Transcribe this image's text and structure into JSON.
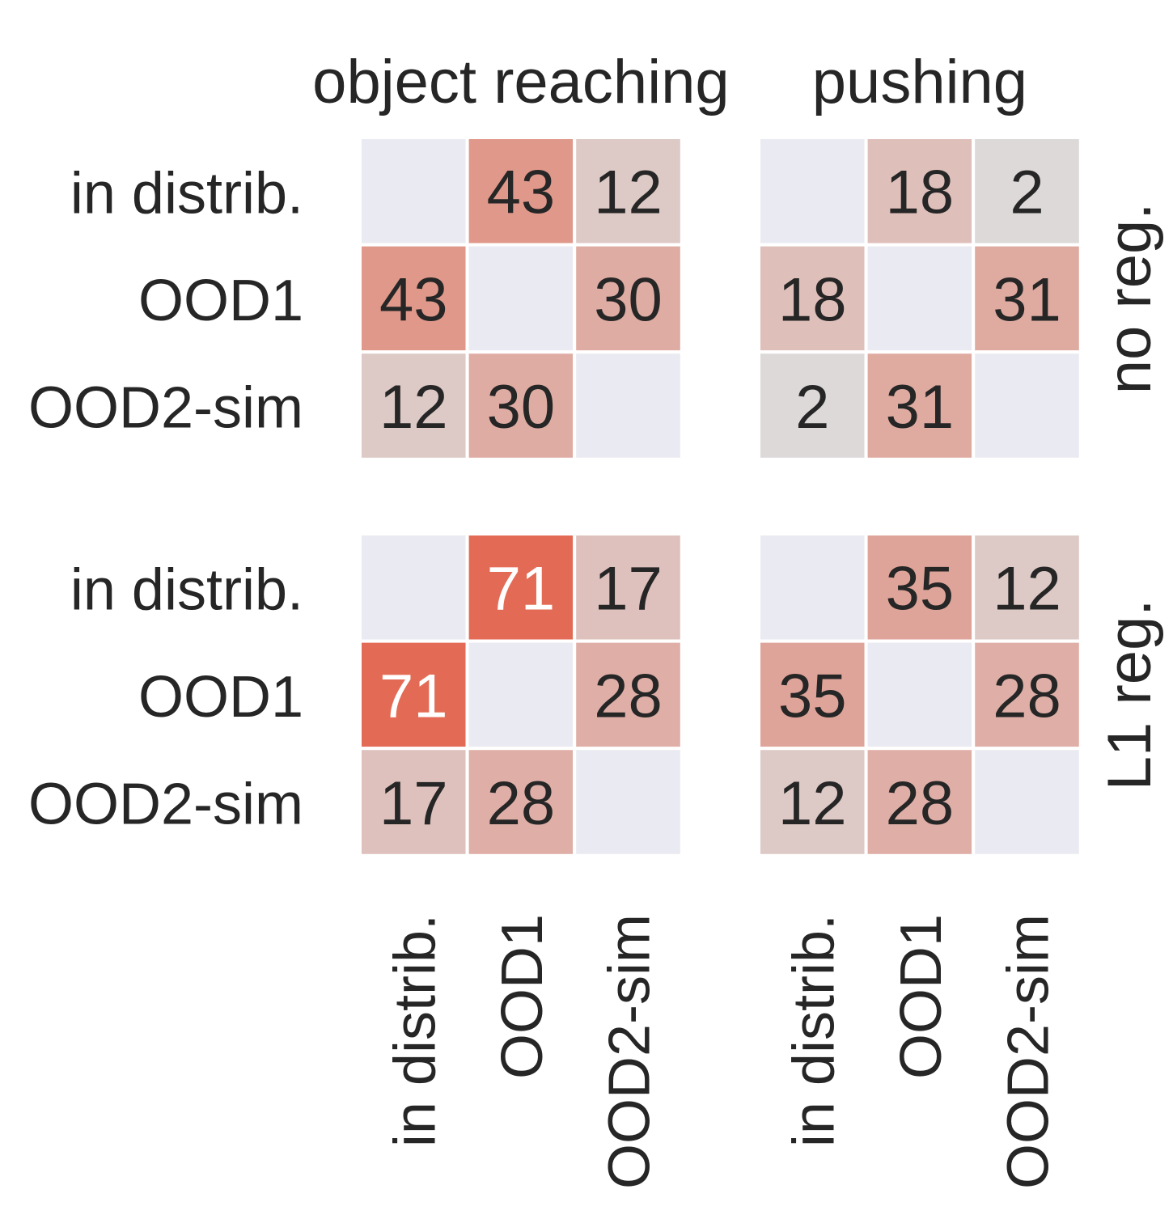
{
  "chart_data": {
    "type": "heatmap",
    "colors": {
      "diagonal": "#eaeaf2",
      "low": "#dcdcdc",
      "high": "#e36b55",
      "text_dark": "#262626",
      "text_light": "#ffffff",
      "background": "#ffffff"
    },
    "column_titles": [
      "object reaching",
      "pushing"
    ],
    "row_titles": [
      "no reg.",
      "L1 reg."
    ],
    "categories": [
      "in distrib.",
      "OOD1",
      "OOD2-sim"
    ],
    "value_range": [
      0,
      71
    ],
    "panels": [
      {
        "row": "no reg.",
        "column": "object reaching",
        "values": [
          [
            null,
            43,
            12
          ],
          [
            43,
            null,
            30
          ],
          [
            12,
            30,
            null
          ]
        ]
      },
      {
        "row": "no reg.",
        "column": "pushing",
        "values": [
          [
            null,
            18,
            2
          ],
          [
            18,
            null,
            31
          ],
          [
            2,
            31,
            null
          ]
        ]
      },
      {
        "row": "L1 reg.",
        "column": "object reaching",
        "values": [
          [
            null,
            71,
            17
          ],
          [
            71,
            null,
            28
          ],
          [
            17,
            28,
            null
          ]
        ]
      },
      {
        "row": "L1 reg.",
        "column": "pushing",
        "values": [
          [
            null,
            35,
            12
          ],
          [
            35,
            null,
            28
          ],
          [
            12,
            28,
            null
          ]
        ]
      }
    ]
  }
}
